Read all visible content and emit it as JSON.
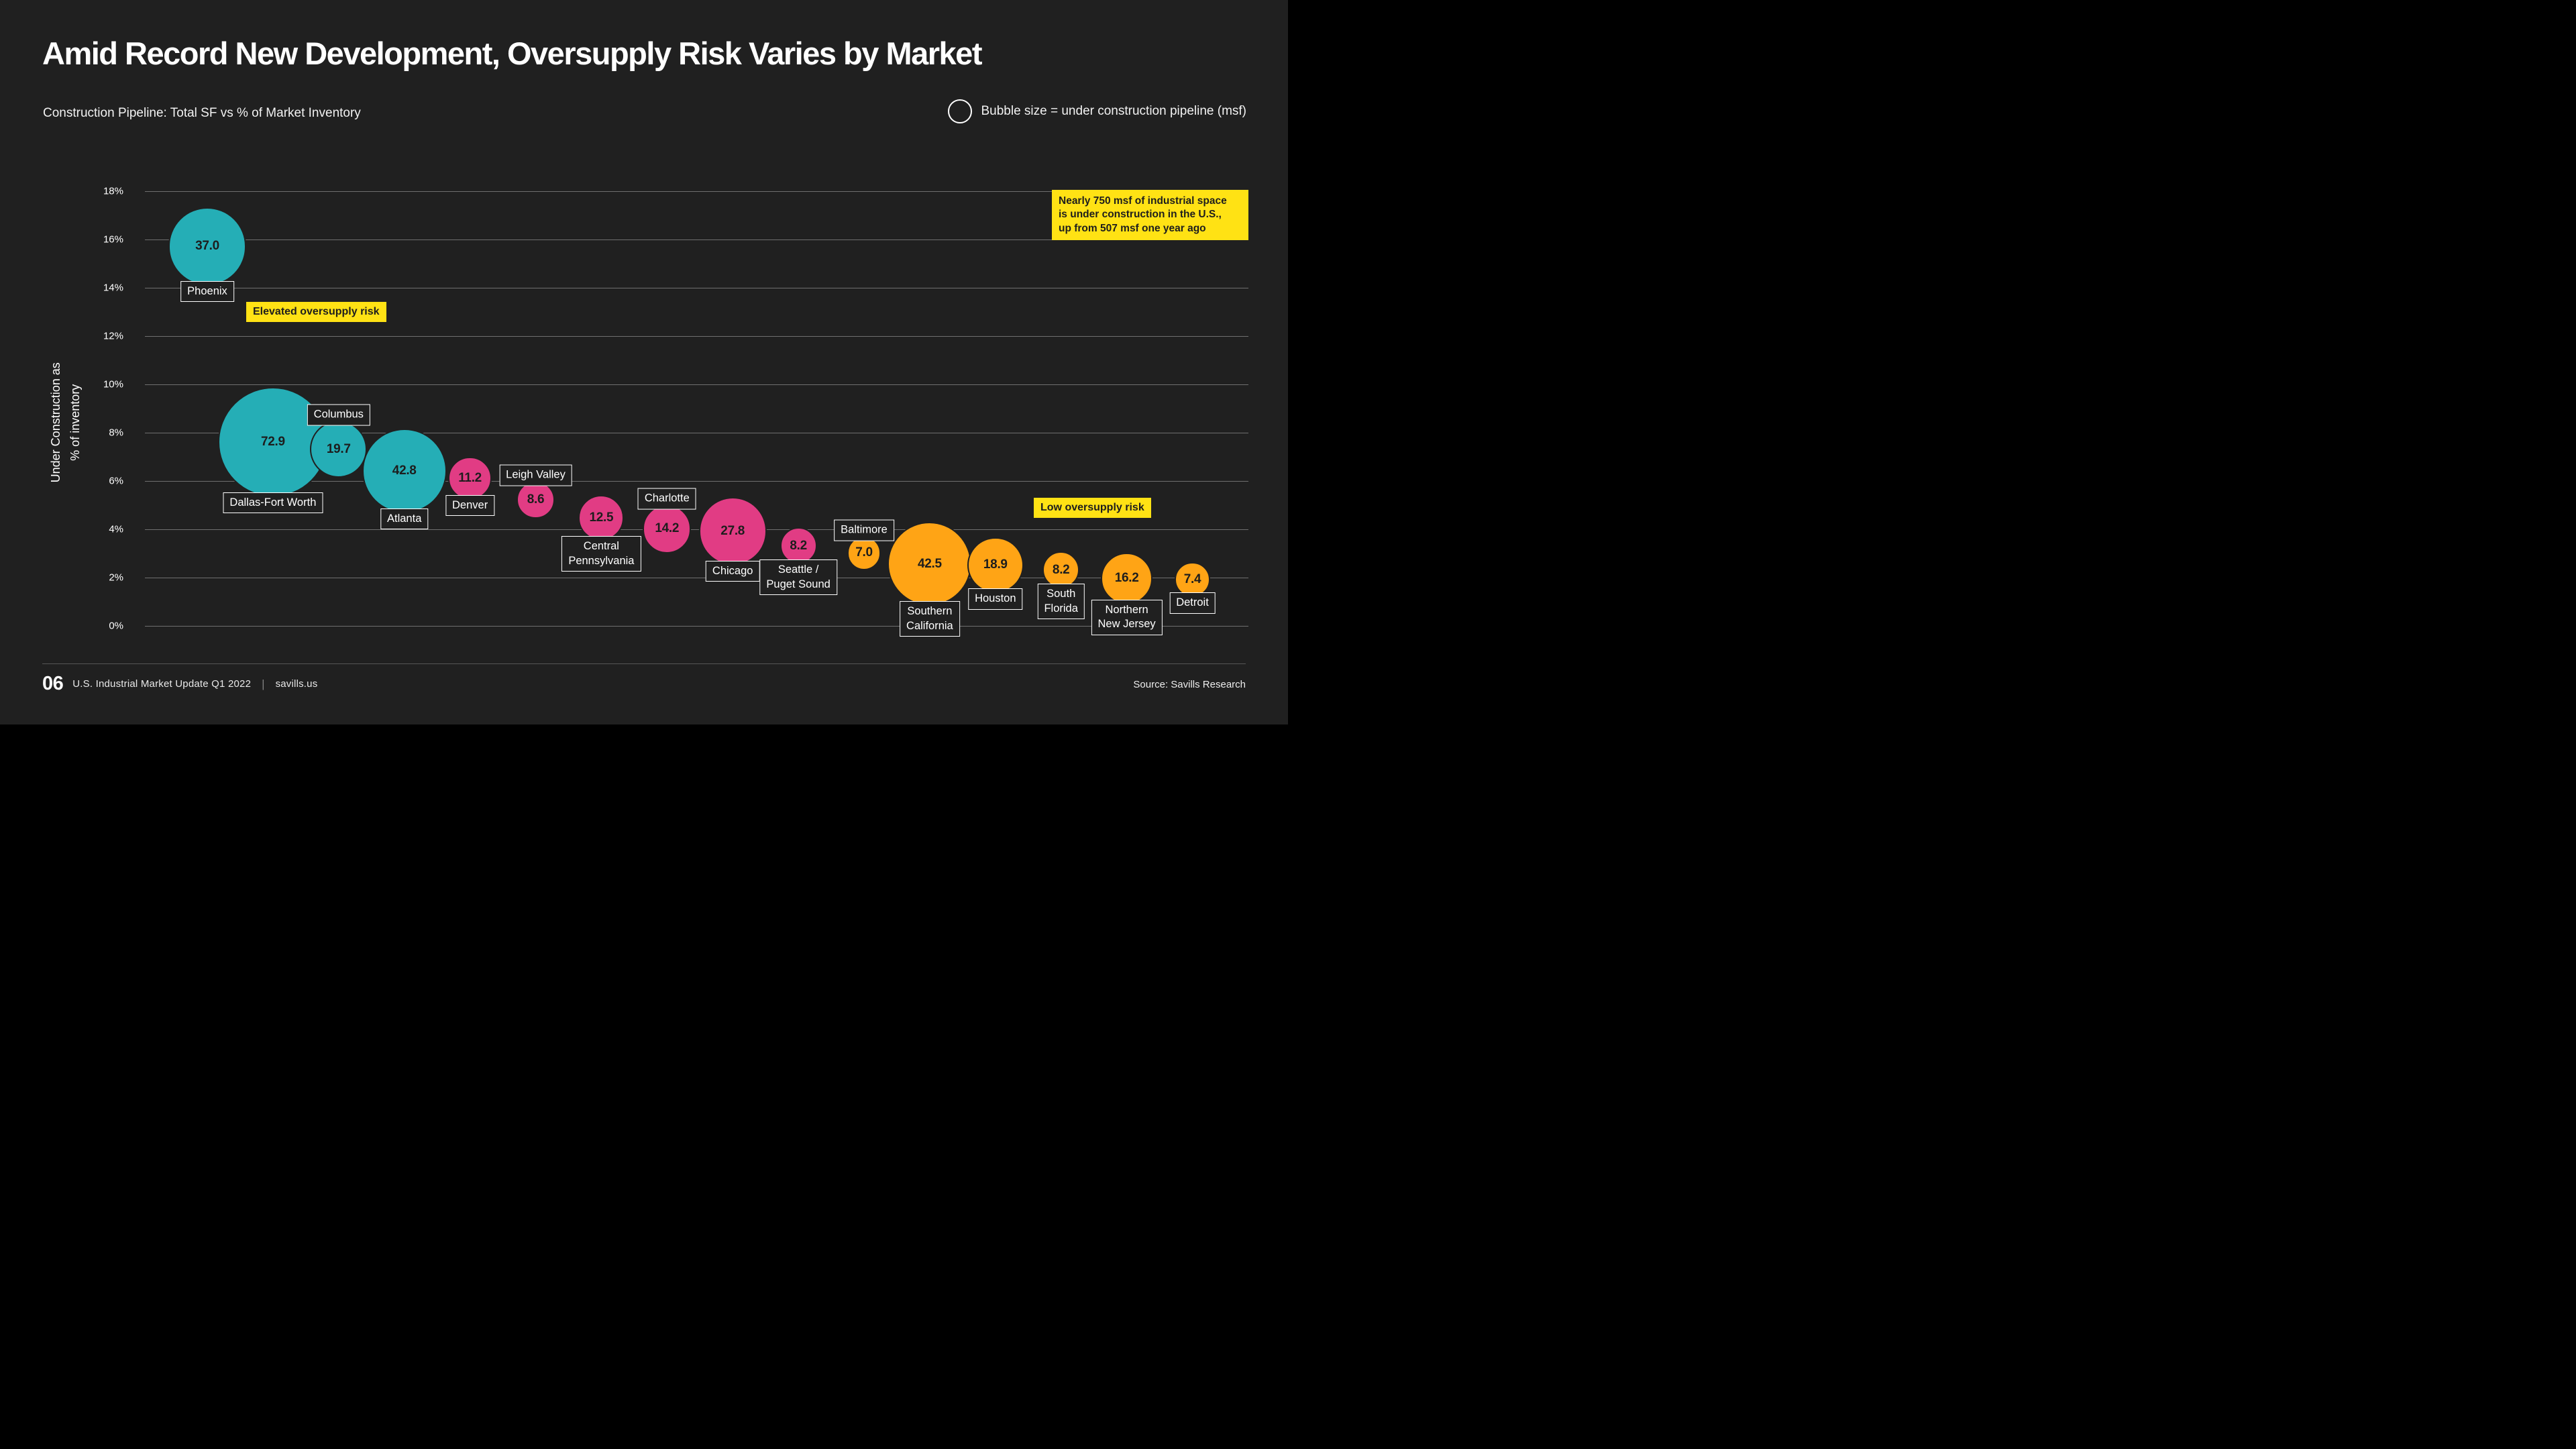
{
  "title": "Amid Record New Development, Oversupply Risk Varies by Market",
  "subtitle": "Construction Pipeline: Total SF vs % of Market Inventory",
  "legend": {
    "icon": "circle-outline",
    "label": "Bubble size = under construction pipeline (msf)"
  },
  "annotations": {
    "elevated_badge": "Elevated oversupply risk",
    "low_badge": "Low oversupply risk",
    "callout": "Nearly 750 msf of industrial space\nis under construction in the U.S.,\nup from 507 msf one year ago"
  },
  "footer": {
    "page_number": "06",
    "report_title": "U.S. Industrial Market Update Q1 2022",
    "separator": "|",
    "site": "savills.us",
    "source": "Source: Savills Research"
  },
  "colors": {
    "background": "#202020",
    "elevated": "#25aeb6",
    "moderate": "#e13c84",
    "low": "#ffa415",
    "highlight_yellow": "#ffe214",
    "gridline": "#6f6f6f",
    "dark_text": "#1d1d1d"
  },
  "chart_data": {
    "type": "scatter",
    "subtype": "bubble",
    "title": "Construction Pipeline: Total SF vs % of Market Inventory",
    "xlabel": "",
    "ylabel": "Under Construction as\n% of inventory",
    "ylim": [
      0,
      18
    ],
    "grid": true,
    "y_ticks": [
      {
        "value": 18,
        "label": "18%"
      },
      {
        "value": 16,
        "label": "16%"
      },
      {
        "value": 14,
        "label": "14%"
      },
      {
        "value": 12,
        "label": "12%"
      },
      {
        "value": 10,
        "label": "10%"
      },
      {
        "value": 8,
        "label": "8%"
      },
      {
        "value": 6,
        "label": "6%"
      },
      {
        "value": 4,
        "label": "4%"
      },
      {
        "value": 2,
        "label": "2%"
      },
      {
        "value": 0,
        "label": "0%"
      }
    ],
    "size_legend": "Bubble size = under construction pipeline (msf)",
    "points": [
      {
        "market": "Phoenix",
        "label": "Phoenix",
        "msf": 37.0,
        "pct_of_inventory": 15.7,
        "group": "elevated",
        "label_side": "below"
      },
      {
        "market": "Dallas-Fort Worth",
        "label": "Dallas-Fort Worth",
        "msf": 72.9,
        "pct_of_inventory": 7.6,
        "group": "elevated",
        "label_side": "below"
      },
      {
        "market": "Columbus",
        "label": "Columbus",
        "msf": 19.7,
        "pct_of_inventory": 7.3,
        "group": "elevated",
        "label_side": "above"
      },
      {
        "market": "Atlanta",
        "label": "Atlanta",
        "msf": 42.8,
        "pct_of_inventory": 6.4,
        "group": "elevated",
        "label_side": "below"
      },
      {
        "market": "Denver",
        "label": "Denver",
        "msf": 11.2,
        "pct_of_inventory": 6.1,
        "group": "moderate",
        "label_side": "below"
      },
      {
        "market": "Leigh Valley",
        "label": "Leigh Valley",
        "msf": 8.6,
        "pct_of_inventory": 5.2,
        "group": "moderate",
        "label_side": "above"
      },
      {
        "market": "Central Pennsylvania",
        "label": "Central\nPennsylvania",
        "msf": 12.5,
        "pct_of_inventory": 4.45,
        "group": "moderate",
        "label_side": "below"
      },
      {
        "market": "Charlotte",
        "label": "Charlotte",
        "msf": 14.2,
        "pct_of_inventory": 4.0,
        "group": "moderate",
        "label_side": "above"
      },
      {
        "market": "Chicago",
        "label": "Chicago",
        "msf": 27.8,
        "pct_of_inventory": 3.9,
        "group": "moderate",
        "label_side": "below"
      },
      {
        "market": "Seattle / Puget Sound",
        "label": "Seattle /\nPuget Sound",
        "msf": 8.2,
        "pct_of_inventory": 3.3,
        "group": "moderate",
        "label_side": "below"
      },
      {
        "market": "Baltimore",
        "label": "Baltimore",
        "msf": 7.0,
        "pct_of_inventory": 3.0,
        "group": "low",
        "label_side": "above"
      },
      {
        "market": "Southern California",
        "label": "Southern\nCalifornia",
        "msf": 42.5,
        "pct_of_inventory": 2.55,
        "group": "low",
        "label_side": "below"
      },
      {
        "market": "Houston",
        "label": "Houston",
        "msf": 18.9,
        "pct_of_inventory": 2.5,
        "group": "low",
        "label_side": "below"
      },
      {
        "market": "South Florida",
        "label": "South\nFlorida",
        "msf": 8.2,
        "pct_of_inventory": 2.3,
        "group": "low",
        "label_side": "below"
      },
      {
        "market": "Northern New Jersey",
        "label": "Northern\nNew Jersey",
        "msf": 16.2,
        "pct_of_inventory": 1.95,
        "group": "low",
        "label_side": "below"
      },
      {
        "market": "Detroit",
        "label": "Detroit",
        "msf": 7.4,
        "pct_of_inventory": 1.9,
        "group": "low",
        "label_side": "below"
      }
    ]
  }
}
